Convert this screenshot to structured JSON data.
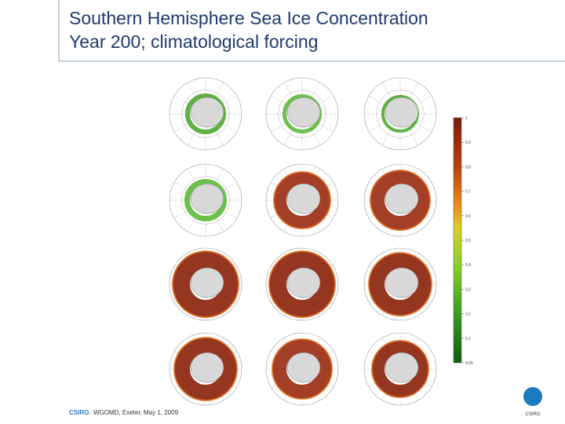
{
  "header": {
    "title_lines": [
      "Southern Hemisphere Sea Ice Concentration",
      "Year 200; climatological forcing"
    ]
  },
  "colorbar": {
    "labels": [
      "1",
      "0.9",
      "0.8",
      "0.7",
      "0.6",
      "0.5",
      "0.4",
      "0.3",
      "0.2",
      "0.1",
      "0.05"
    ]
  },
  "footer": {
    "org": "CSIRO.",
    "text": "WGOMD, Exeter, May 1, 2009"
  },
  "logo": {
    "text": "CSIRO"
  }
}
